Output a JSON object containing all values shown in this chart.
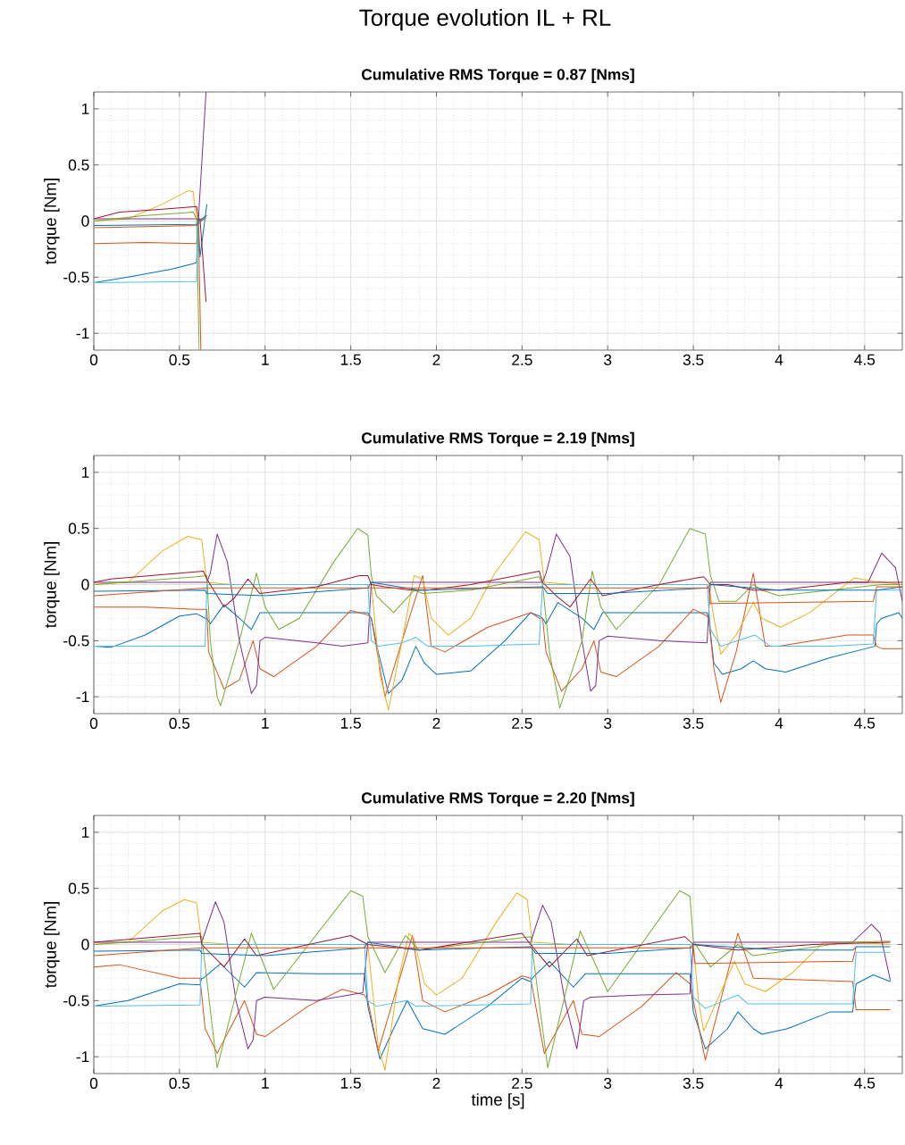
{
  "chart_data": [
    {
      "type": "line",
      "title": "Torque evolution IL + RL",
      "subtitle": "Cumulative RMS Torque =  0.87 [Nms]",
      "ylabel": "torque [Nm]",
      "xlim": [
        0,
        4.72
      ],
      "ylim": [
        -1.15,
        1.15
      ],
      "xticks": [
        0,
        0.5,
        1,
        1.5,
        2,
        2.5,
        3,
        3.5,
        4,
        4.5
      ],
      "yticks": [
        -1,
        -0.5,
        0,
        0.5,
        1
      ],
      "grid": true,
      "series": [
        {
          "color": "#0072bd",
          "x": [
            0,
            0.2,
            0.45,
            0.58,
            0.6,
            0.61,
            0.62,
            0.66
          ],
          "values": [
            -0.55,
            -0.5,
            -0.43,
            -0.38,
            -0.37,
            0.0,
            -0.32,
            0.15
          ]
        },
        {
          "color": "#d95319",
          "x": [
            0,
            0.3,
            0.6,
            0.61,
            0.625
          ],
          "values": [
            -0.2,
            -0.19,
            -0.2,
            0.02,
            -1.15
          ]
        },
        {
          "color": "#edb120",
          "x": [
            0,
            0.2,
            0.4,
            0.55,
            0.58,
            0.6,
            0.62,
            0.66
          ],
          "values": [
            0,
            0.02,
            0.15,
            0.27,
            0.26,
            0.02,
            0.0,
            0.03
          ]
        },
        {
          "color": "#7e2f8e",
          "x": [
            0,
            0.6,
            0.61,
            0.655
          ],
          "values": [
            0.02,
            0.02,
            0.0,
            1.15
          ]
        },
        {
          "color": "#77ac30",
          "x": [
            0,
            0.3,
            0.5,
            0.58,
            0.6,
            0.615
          ],
          "values": [
            0,
            0.05,
            0.07,
            0.08,
            0.02,
            -1.15
          ]
        },
        {
          "color": "#4dbeee",
          "x": [
            0,
            0.6,
            0.61,
            0.65
          ],
          "values": [
            -0.55,
            -0.54,
            0.0,
            0.02
          ]
        },
        {
          "color": "#a2142f",
          "x": [
            0,
            0.15,
            0.35,
            0.6,
            0.61,
            0.62,
            0.655
          ],
          "values": [
            0.02,
            0.08,
            0.1,
            0.13,
            0.02,
            0.02,
            -0.72
          ]
        },
        {
          "color": "#0072bd",
          "x": [
            0,
            0.6,
            0.61,
            0.66
          ],
          "values": [
            -0.04,
            -0.03,
            0.0,
            0.05
          ]
        },
        {
          "color": "#d95319",
          "x": [
            0,
            0.6,
            0.65
          ],
          "values": [
            -0.06,
            -0.04,
            0.03
          ]
        }
      ]
    },
    {
      "type": "line",
      "title": "Cumulative RMS Torque =  2.19 [Nms]",
      "ylabel": "torque [Nm]",
      "xlim": [
        0,
        4.72
      ],
      "ylim": [
        -1.15,
        1.15
      ],
      "xticks": [
        0,
        0.5,
        1,
        1.5,
        2,
        2.5,
        3,
        3.5,
        4,
        4.5
      ],
      "yticks": [
        -1,
        -0.5,
        0,
        0.5,
        1
      ],
      "grid": true,
      "series": [
        {
          "color": "#0072bd",
          "x": [
            0,
            0.1,
            0.3,
            0.5,
            0.6,
            0.65,
            0.66,
            0.68,
            0.76,
            0.85,
            0.92,
            0.97,
            1.2,
            1.6,
            1.62,
            1.66,
            1.72,
            1.8,
            1.88,
            1.93,
            2.0,
            2.2,
            2.4,
            2.55,
            2.6,
            2.62,
            2.64,
            2.71,
            2.85,
            2.92,
            2.97,
            3.2,
            3.58,
            3.59,
            3.62,
            3.67,
            3.78,
            3.85,
            3.92,
            4.04,
            4.3,
            4.56,
            4.57,
            4.6,
            4.7,
            4.72
          ],
          "values": [
            -0.55,
            -0.56,
            -0.45,
            -0.28,
            -0.26,
            -0.3,
            -0.3,
            -0.35,
            -0.18,
            -0.3,
            -0.4,
            -0.25,
            -0.25,
            -0.25,
            -0.3,
            -0.6,
            -0.97,
            -0.85,
            -0.55,
            -0.7,
            -0.8,
            -0.77,
            -0.5,
            -0.25,
            -0.28,
            -0.3,
            -0.35,
            -0.16,
            -0.3,
            -0.4,
            -0.25,
            -0.25,
            -0.25,
            -0.3,
            -0.7,
            -0.8,
            -0.75,
            -0.68,
            -0.75,
            -0.78,
            -0.65,
            -0.55,
            -0.35,
            -0.3,
            -0.25,
            -0.3
          ]
        },
        {
          "color": "#d95319",
          "x": [
            0,
            0.3,
            0.6,
            0.66,
            0.67,
            0.76,
            0.85,
            0.93,
            0.97,
            1.05,
            1.3,
            1.5,
            1.6,
            1.62,
            1.7,
            1.8,
            1.92,
            1.97,
            2.05,
            2.3,
            2.55,
            2.6,
            2.62,
            2.64,
            2.73,
            2.85,
            2.92,
            2.96,
            3.05,
            3.3,
            3.5,
            3.58,
            3.59,
            3.62,
            3.66,
            3.75,
            3.85,
            3.92,
            4.0,
            4.4,
            4.55,
            4.57,
            4.6,
            4.72
          ],
          "values": [
            -0.2,
            -0.2,
            -0.22,
            -0.22,
            -0.6,
            -0.93,
            -0.85,
            -0.5,
            -0.75,
            -0.82,
            -0.55,
            -0.23,
            -0.27,
            -0.3,
            -1.0,
            -0.5,
            0.08,
            -0.55,
            -0.6,
            -0.38,
            -0.25,
            -0.3,
            -0.3,
            -0.6,
            -0.95,
            -0.75,
            -0.5,
            -0.78,
            -0.82,
            -0.55,
            -0.22,
            -0.28,
            -0.3,
            -0.75,
            -1.05,
            -0.6,
            0.1,
            -0.55,
            -0.55,
            -0.45,
            -0.45,
            -0.55,
            -0.57,
            -0.57
          ]
        },
        {
          "color": "#edb120",
          "x": [
            0,
            0.2,
            0.4,
            0.55,
            0.63,
            0.66,
            0.8,
            1.62,
            1.67,
            1.72,
            1.8,
            1.87,
            1.92,
            1.97,
            2.07,
            2.2,
            2.34,
            2.52,
            2.6,
            2.63,
            2.8,
            3.59,
            3.62,
            3.66,
            3.75,
            3.85,
            3.9,
            4.01,
            4.18,
            4.44,
            4.55,
            4.72
          ],
          "values": [
            0,
            0.02,
            0.3,
            0.43,
            0.4,
            0.02,
            0,
            0,
            -0.8,
            -1.12,
            -0.5,
            0.08,
            0.05,
            -0.3,
            -0.45,
            -0.3,
            0.1,
            0.47,
            0.4,
            0.02,
            0,
            0,
            -0.3,
            -0.62,
            -0.45,
            -0.16,
            -0.3,
            -0.38,
            -0.25,
            0.06,
            0.03,
            0.0
          ]
        },
        {
          "color": "#7e2f8e",
          "x": [
            0,
            0.66,
            0.68,
            0.72,
            0.78,
            0.85,
            0.92,
            0.95,
            0.97,
            1.0,
            1.3,
            1.45,
            1.6,
            1.62,
            1.8,
            2.62,
            2.64,
            2.7,
            2.78,
            2.85,
            2.9,
            2.93,
            2.95,
            3.0,
            3.3,
            3.58,
            3.6,
            4.4,
            4.52,
            4.6,
            4.68,
            4.72
          ],
          "values": [
            0.02,
            0.02,
            0.1,
            0.45,
            0.2,
            -0.5,
            -0.97,
            -0.9,
            -0.5,
            -0.47,
            -0.52,
            -0.55,
            -0.52,
            0.02,
            0.02,
            0.02,
            0.1,
            0.45,
            0.25,
            -0.5,
            -0.95,
            -0.9,
            -0.5,
            -0.46,
            -0.5,
            -0.52,
            0.02,
            0.02,
            0.02,
            0.28,
            0.15,
            -0.15
          ]
        },
        {
          "color": "#77ac30",
          "x": [
            0,
            0.6,
            0.66,
            0.68,
            0.72,
            0.74,
            0.85,
            0.95,
            1.0,
            1.08,
            1.2,
            1.4,
            1.54,
            1.6,
            1.62,
            1.65,
            1.75,
            1.87,
            1.92,
            2.2,
            2.6,
            2.62,
            2.66,
            2.72,
            2.85,
            2.91,
            2.96,
            3.05,
            3.3,
            3.48,
            3.57,
            3.6,
            3.65,
            3.75,
            3.85,
            3.9,
            4.0,
            4.6,
            4.72
          ],
          "values": [
            0,
            0.07,
            0.08,
            -0.5,
            -1.0,
            -1.08,
            -0.5,
            0.1,
            -0.2,
            -0.4,
            -0.3,
            0.2,
            0.5,
            0.44,
            0.08,
            -0.1,
            -0.25,
            -0.05,
            -0.08,
            -0.05,
            0.07,
            0.0,
            -0.6,
            -1.1,
            -0.5,
            0.12,
            -0.2,
            -0.4,
            0.0,
            0.5,
            0.45,
            0.08,
            -0.15,
            -0.15,
            0.0,
            -0.05,
            -0.1,
            0.0,
            0.0
          ]
        },
        {
          "color": "#4dbeee",
          "x": [
            0,
            0.65,
            0.66,
            1.6,
            1.62,
            1.66,
            1.8,
            1.88,
            1.95,
            2.2,
            2.6,
            2.62,
            3.58,
            3.6,
            3.66,
            3.8,
            3.86,
            3.95,
            4.3,
            4.55,
            4.57,
            4.72
          ],
          "values": [
            -0.55,
            -0.55,
            0.0,
            0.0,
            -0.5,
            -0.55,
            -0.52,
            -0.47,
            -0.55,
            -0.55,
            -0.53,
            0.0,
            0.0,
            -0.4,
            -0.55,
            -0.48,
            -0.45,
            -0.55,
            -0.55,
            -0.53,
            -0.05,
            -0.05
          ]
        },
        {
          "color": "#a2142f",
          "x": [
            0,
            0.1,
            0.64,
            0.66,
            0.72,
            0.76,
            0.82,
            0.9,
            0.97,
            1.3,
            1.55,
            1.6,
            1.62,
            1.7,
            1.85,
            1.95,
            2.2,
            2.6,
            2.62,
            2.7,
            2.78,
            2.9,
            2.97,
            3.3,
            3.56,
            3.6,
            3.7,
            3.85,
            4.0,
            4.4,
            4.72
          ],
          "values": [
            0.02,
            0.05,
            0.12,
            0.05,
            -0.1,
            -0.2,
            -0.12,
            0.05,
            -0.08,
            -0.02,
            0.08,
            0.08,
            0.0,
            -0.02,
            -0.05,
            -0.05,
            0.0,
            0.12,
            0.02,
            -0.1,
            -0.2,
            0.05,
            -0.1,
            0.0,
            0.07,
            0.0,
            0.0,
            -0.05,
            -0.05,
            0.02,
            0.02
          ]
        },
        {
          "color": "#0072bd",
          "x": [
            0,
            0.65,
            0.66,
            1.0,
            1.6,
            1.62,
            1.9,
            2.62,
            2.65,
            3.0,
            3.58,
            3.6,
            4.0,
            4.57,
            4.72
          ],
          "values": [
            -0.06,
            -0.05,
            -0.08,
            -0.1,
            -0.03,
            0.02,
            -0.05,
            -0.02,
            -0.08,
            -0.08,
            -0.03,
            0.0,
            -0.05,
            -0.05,
            -0.02
          ]
        },
        {
          "color": "#d95319",
          "x": [
            0,
            0.66,
            3.59,
            3.6,
            4.55,
            4.57,
            4.72
          ],
          "values": [
            -0.1,
            -0.03,
            -0.03,
            -0.17,
            -0.15,
            -0.02,
            -0.02
          ]
        }
      ]
    },
    {
      "type": "line",
      "title": "Cumulative RMS Torque =  2.20 [Nms]",
      "xlabel": "time [s]",
      "ylabel": "torque [Nm]",
      "xlim": [
        0,
        4.72
      ],
      "ylim": [
        -1.15,
        1.15
      ],
      "xticks": [
        0,
        0.5,
        1,
        1.5,
        2,
        2.5,
        3,
        3.5,
        4,
        4.5
      ],
      "yticks": [
        -1,
        -0.5,
        0,
        0.5,
        1
      ],
      "grid": true,
      "series": [
        {
          "color": "#0072bd",
          "x": [
            0,
            0.2,
            0.5,
            0.62,
            0.63,
            0.64,
            0.74,
            0.88,
            0.95,
            1.3,
            1.58,
            1.6,
            1.67,
            1.75,
            1.83,
            1.92,
            2.05,
            2.3,
            2.5,
            2.55,
            2.56,
            2.66,
            2.8,
            2.87,
            3.2,
            3.48,
            3.5,
            3.57,
            3.7,
            3.76,
            3.85,
            3.9,
            4.05,
            4.3,
            4.43,
            4.45,
            4.55,
            4.65
          ],
          "values": [
            -0.55,
            -0.5,
            -0.35,
            -0.36,
            -0.3,
            -0.3,
            -0.17,
            -0.38,
            -0.25,
            -0.26,
            -0.26,
            -0.55,
            -1.02,
            -0.75,
            -0.5,
            -0.75,
            -0.8,
            -0.55,
            -0.3,
            -0.33,
            -0.3,
            -0.15,
            -0.38,
            -0.26,
            -0.26,
            -0.26,
            -0.6,
            -0.93,
            -0.75,
            -0.6,
            -0.75,
            -0.8,
            -0.75,
            -0.6,
            -0.6,
            -0.35,
            -0.27,
            -0.33
          ]
        },
        {
          "color": "#d95319",
          "x": [
            0,
            0.15,
            0.5,
            0.62,
            0.65,
            0.72,
            0.88,
            0.95,
            1.0,
            1.25,
            1.45,
            1.58,
            1.6,
            1.66,
            1.86,
            1.92,
            2.05,
            2.3,
            2.5,
            2.55,
            2.63,
            2.8,
            2.85,
            2.95,
            3.2,
            3.4,
            3.48,
            3.5,
            3.57,
            3.76,
            3.85,
            4.43,
            4.45,
            4.65
          ],
          "values": [
            -0.2,
            -0.18,
            -0.3,
            -0.3,
            -0.75,
            -0.97,
            -0.5,
            -0.8,
            -0.82,
            -0.55,
            -0.4,
            -0.45,
            -0.5,
            -0.95,
            0.08,
            -0.5,
            -0.6,
            -0.45,
            -0.28,
            -0.3,
            -0.97,
            -0.5,
            -0.8,
            -0.82,
            -0.55,
            -0.25,
            -0.35,
            -0.5,
            -1.03,
            0.1,
            -0.3,
            -0.33,
            -0.58,
            -0.58
          ]
        },
        {
          "color": "#edb120",
          "x": [
            0,
            0.2,
            0.4,
            0.53,
            0.6,
            0.63,
            0.8,
            1.6,
            1.66,
            1.7,
            1.78,
            1.84,
            1.87,
            1.93,
            2.0,
            2.15,
            2.35,
            2.47,
            2.53,
            2.56,
            2.8,
            3.5,
            3.53,
            3.56,
            3.74,
            3.8,
            3.92,
            4.08,
            4.26,
            4.43,
            4.65
          ],
          "values": [
            0,
            0.02,
            0.3,
            0.4,
            0.37,
            0.02,
            0,
            0,
            -0.9,
            -1.12,
            -0.3,
            0.1,
            0.05,
            -0.35,
            -0.45,
            -0.3,
            0.2,
            0.46,
            0.4,
            0.02,
            0,
            0,
            -0.5,
            -0.77,
            -0.15,
            -0.35,
            -0.42,
            -0.25,
            0.02,
            0.02,
            0.0
          ]
        },
        {
          "color": "#7e2f8e",
          "x": [
            0,
            0.63,
            0.71,
            0.76,
            0.83,
            0.9,
            0.93,
            0.95,
            1.0,
            1.3,
            1.57,
            1.6,
            2.55,
            2.62,
            2.67,
            2.75,
            2.82,
            2.86,
            2.9,
            3.2,
            3.48,
            3.5,
            4.43,
            4.54,
            4.59,
            4.65
          ],
          "values": [
            0.02,
            0.02,
            0.38,
            0.2,
            -0.5,
            -0.93,
            -0.85,
            -0.5,
            -0.47,
            -0.5,
            -0.43,
            0.02,
            0.02,
            0.35,
            0.2,
            -0.5,
            -0.93,
            -0.5,
            -0.47,
            -0.45,
            -0.44,
            0.02,
            0.02,
            0.18,
            0.1,
            -0.32
          ]
        },
        {
          "color": "#77ac30",
          "x": [
            0,
            0.6,
            0.63,
            0.72,
            0.92,
            1.05,
            1.5,
            1.57,
            1.6,
            1.7,
            1.82,
            1.9,
            2.55,
            2.65,
            2.84,
            3.0,
            3.42,
            3.48,
            3.5,
            3.6,
            3.76,
            3.85,
            4.4,
            4.65
          ],
          "values": [
            0,
            0.07,
            0.07,
            -1.1,
            0.1,
            -0.4,
            0.48,
            0.43,
            0.07,
            -0.25,
            0.08,
            -0.05,
            0.07,
            -1.1,
            0.12,
            -0.42,
            0.48,
            0.43,
            0.03,
            -0.2,
            0.0,
            -0.1,
            0.02,
            0.03
          ]
        },
        {
          "color": "#4dbeee",
          "x": [
            0,
            0.62,
            0.63,
            1.58,
            1.6,
            1.65,
            1.83,
            1.88,
            2.55,
            2.56,
            3.48,
            3.5,
            3.57,
            3.76,
            3.82,
            4.43,
            4.45,
            4.65
          ],
          "values": [
            -0.55,
            -0.54,
            0.0,
            0.0,
            -0.5,
            -0.55,
            -0.5,
            -0.55,
            -0.53,
            0.0,
            0.0,
            -0.47,
            -0.57,
            -0.45,
            -0.53,
            -0.53,
            -0.07,
            -0.07
          ]
        },
        {
          "color": "#a2142f",
          "x": [
            0,
            0.62,
            0.63,
            0.76,
            0.88,
            0.95,
            1.5,
            1.6,
            1.9,
            2.5,
            2.55,
            2.66,
            2.82,
            2.88,
            3.45,
            3.5,
            3.76,
            4.2,
            4.65
          ],
          "values": [
            0.02,
            0.1,
            0.0,
            -0.2,
            0.05,
            -0.1,
            0.08,
            0.0,
            -0.05,
            0.1,
            0.0,
            -0.2,
            0.05,
            -0.1,
            0.07,
            0.0,
            -0.05,
            0.0,
            0.02
          ]
        },
        {
          "color": "#0072bd",
          "x": [
            0,
            0.62,
            0.63,
            1.0,
            1.58,
            1.6,
            1.9,
            2.55,
            2.58,
            3.0,
            3.48,
            3.5,
            4.0,
            4.43,
            4.45,
            4.65
          ],
          "values": [
            -0.06,
            -0.05,
            -0.08,
            -0.1,
            -0.03,
            0.02,
            -0.05,
            -0.02,
            -0.08,
            -0.08,
            -0.03,
            0.0,
            -0.05,
            -0.05,
            -0.02,
            -0.02
          ]
        },
        {
          "color": "#d95319",
          "x": [
            0,
            0.63,
            3.5,
            3.51,
            4.43,
            4.45
          ],
          "values": [
            -0.1,
            -0.03,
            -0.03,
            -0.17,
            -0.15,
            -0.02
          ]
        }
      ]
    }
  ]
}
